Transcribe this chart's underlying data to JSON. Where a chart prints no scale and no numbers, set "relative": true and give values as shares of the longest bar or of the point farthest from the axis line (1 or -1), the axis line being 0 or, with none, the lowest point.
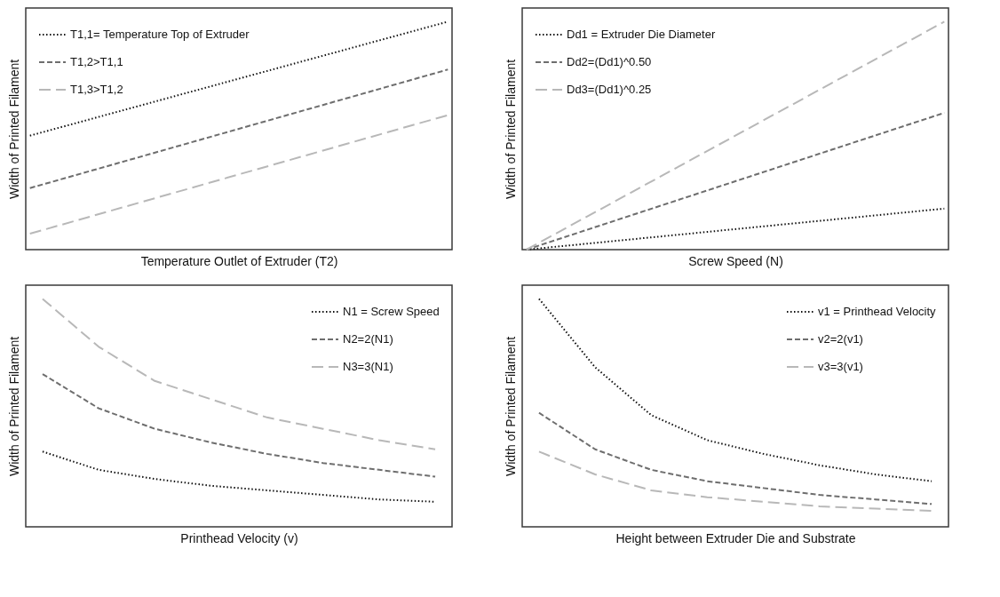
{
  "chart_data": [
    {
      "type": "line",
      "relative": true,
      "xlabel": "Temperature Outlet of Extruder (T2)",
      "ylabel": "Width of Printed Filament",
      "categories": [
        null,
        null,
        null
      ],
      "legend": "top left",
      "tick_labels": false,
      "series": [
        {
          "name": "T1,1= Temperature Top of Extruder",
          "color": "#111111",
          "line_style": "dotted",
          "values": [
            0.5,
            0.75,
            1
          ]
        },
        {
          "name": "T1,2>T1,1",
          "color": "#6e6e6e",
          "line_style": "dashed",
          "values": [
            0.27,
            0.53,
            0.79
          ]
        },
        {
          "name": "T1,3>T1,2",
          "color": "#b8b8b8",
          "line_style": "dashed",
          "values": [
            0.07,
            0.33,
            0.59
          ]
        }
      ]
    },
    {
      "type": "line",
      "relative": true,
      "xlabel": "Screw Speed (N)",
      "ylabel": "Width of Printed Filament",
      "categories": [
        null,
        null,
        null
      ],
      "legend": "top left",
      "tick_labels": false,
      "series": [
        {
          "name": "Dd1 = Extruder Die Diameter",
          "color": "#111111",
          "line_style": "dotted",
          "values": [
            0,
            0.09,
            0.18
          ]
        },
        {
          "name": "Dd2=(Dd1)^0.50",
          "color": "#6e6e6e",
          "line_style": "dashed",
          "values": [
            0,
            0.3,
            0.6
          ]
        },
        {
          "name": "Dd3=(Dd1)^0.25",
          "color": "#b8b8b8",
          "line_style": "dashed",
          "values": [
            0,
            0.5,
            1
          ]
        }
      ]
    },
    {
      "type": "line",
      "relative": true,
      "xlabel": "Printhead Velocity (v)",
      "ylabel": "Width of Printed Filament",
      "categories": [
        null,
        null,
        null,
        null,
        null,
        null,
        null,
        null
      ],
      "legend": "top right",
      "tick_labels": false,
      "series": [
        {
          "name": "N1 = Screw Speed",
          "color": "#111111",
          "line_style": "dotted",
          "values": [
            0.33,
            0.25,
            0.21,
            0.18,
            0.16,
            0.14,
            0.12,
            0.11
          ]
        },
        {
          "name": "N2=2(N1)",
          "color": "#6e6e6e",
          "line_style": "dashed",
          "values": [
            0.67,
            0.52,
            0.43,
            0.37,
            0.32,
            0.28,
            0.25,
            0.22
          ]
        },
        {
          "name": "N3=3(N1)",
          "color": "#b8b8b8",
          "line_style": "dashed",
          "values": [
            1,
            0.79,
            0.64,
            0.56,
            0.48,
            0.43,
            0.38,
            0.34
          ]
        }
      ]
    },
    {
      "type": "line",
      "relative": true,
      "xlabel": "Height between Extruder Die and Substrate",
      "ylabel": "Width of Printed Filament",
      "categories": [
        null,
        null,
        null,
        null,
        null,
        null,
        null,
        null
      ],
      "legend": "top right",
      "tick_labels": false,
      "series": [
        {
          "name": "v1 = Printhead Velocity",
          "color": "#111111",
          "line_style": "dotted",
          "values": [
            1,
            0.7,
            0.49,
            0.38,
            0.32,
            0.27,
            0.23,
            0.2
          ]
        },
        {
          "name": "v2=2(v1)",
          "color": "#6e6e6e",
          "line_style": "dashed",
          "values": [
            0.5,
            0.34,
            0.25,
            0.2,
            0.17,
            0.14,
            0.12,
            0.1
          ]
        },
        {
          "name": "v3=3(v1)",
          "color": "#b8b8b8",
          "line_style": "dashed",
          "values": [
            0.33,
            0.23,
            0.16,
            0.13,
            0.11,
            0.09,
            0.08,
            0.07
          ]
        }
      ]
    }
  ]
}
